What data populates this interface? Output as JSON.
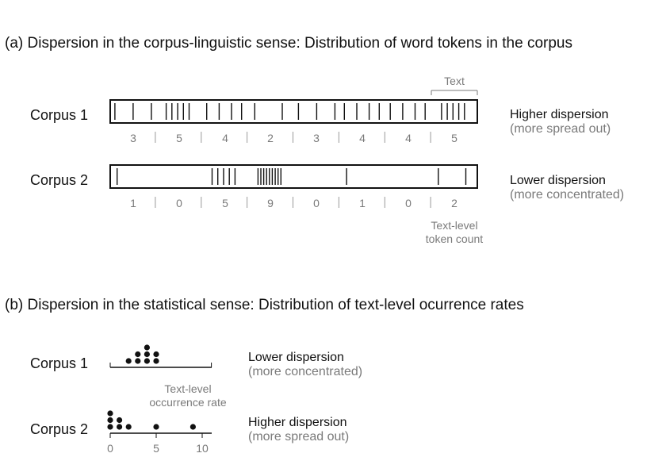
{
  "colors": {
    "text": "#111111",
    "muted": "#7a7a7a",
    "frame": "#111111"
  },
  "section_a": {
    "title": "(a)  Dispersion in the corpus-linguistic sense: Distribution of word tokens in the corpus",
    "text_bracket_label": "Text",
    "corpora": [
      {
        "label": "Corpus 1",
        "counts": [
          "3",
          "5",
          "4",
          "2",
          "3",
          "4",
          "4",
          "5"
        ],
        "note_main": "Higher dispersion",
        "note_sub": "(more spread out)"
      },
      {
        "label": "Corpus 2",
        "counts": [
          "1",
          "0",
          "5",
          "9",
          "0",
          "1",
          "0",
          "2"
        ],
        "note_main": "Lower dispersion",
        "note_sub": "(more concentrated)"
      }
    ],
    "count_caption_line1": "Text-level",
    "count_caption_line2": "token count"
  },
  "section_b": {
    "title": "(b)  Dispersion in the statistical sense: Distribution of text-level ocurrence rates",
    "axis_ticks": [
      "0",
      "5",
      "10"
    ],
    "axis_range": [
      0,
      10
    ],
    "axis_caption_line1": "Text-level",
    "axis_caption_line2": "occurrence rate",
    "corpora": [
      {
        "label": "Corpus 1",
        "rates": [
          3,
          5,
          4,
          2,
          3,
          4,
          4,
          5
        ],
        "note_main": "Lower dispersion",
        "note_sub": "(more concentrated)"
      },
      {
        "label": "Corpus 2",
        "rates": [
          1,
          0,
          5,
          9,
          0,
          1,
          0,
          2
        ],
        "note_main": "Higher dispersion",
        "note_sub": "(more spread out)"
      }
    ]
  }
}
